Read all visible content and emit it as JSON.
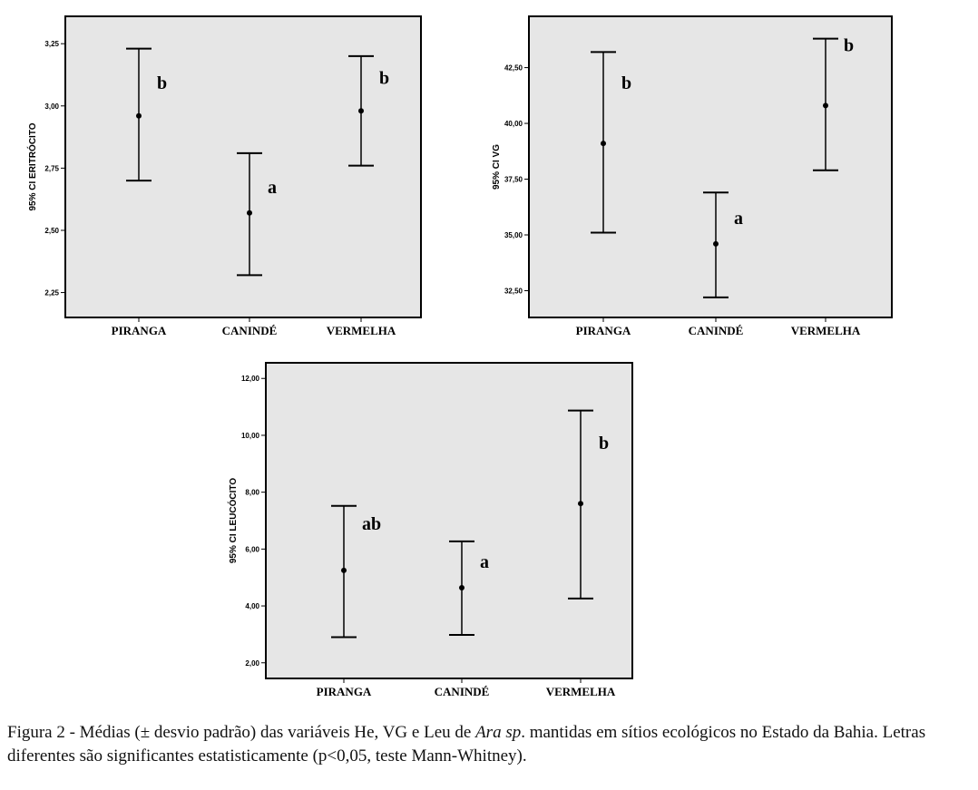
{
  "chart_data": [
    {
      "type": "errorbar",
      "ylabel": "95% CI ERITRÓCITO",
      "categories": [
        "PIRANGA",
        "CANINDÉ",
        "VERMELHA"
      ],
      "mean": [
        2.96,
        2.57,
        2.98
      ],
      "lower": [
        2.7,
        2.32,
        2.76
      ],
      "upper": [
        3.23,
        2.81,
        3.2
      ],
      "letters": [
        "b",
        "a",
        "b"
      ],
      "ylim": [
        2.15,
        3.36
      ],
      "yticks": [
        2.25,
        2.5,
        2.75,
        3.0,
        3.25
      ],
      "ytick_labels": [
        "2,25",
        "2,50",
        "2,75",
        "3,00",
        "3,25"
      ],
      "background": "#e6e6e6",
      "grid": false
    },
    {
      "type": "errorbar",
      "ylabel": "95% CI VG",
      "categories": [
        "PIRANGA",
        "CANINDÉ",
        "VERMELHA"
      ],
      "mean": [
        39.1,
        34.6,
        40.8
      ],
      "lower": [
        35.1,
        32.2,
        37.9
      ],
      "upper": [
        43.2,
        36.9,
        43.8
      ],
      "letters": [
        "b",
        "a",
        "b"
      ],
      "ylim": [
        31.3,
        44.8
      ],
      "yticks": [
        32.5,
        35.0,
        37.5,
        40.0,
        42.5
      ],
      "ytick_labels": [
        "32,50",
        "35,00",
        "37,50",
        "40,00",
        "42,50"
      ],
      "background": "#e6e6e6",
      "grid": false
    },
    {
      "type": "errorbar",
      "ylabel": "95% CI LEUCÓCITO",
      "categories": [
        "PIRANGA",
        "CANINDÉ",
        "VERMELHA"
      ],
      "mean": [
        5.25,
        4.64,
        7.6
      ],
      "lower": [
        2.9,
        2.98,
        4.26
      ],
      "upper": [
        7.52,
        6.27,
        10.87
      ],
      "letters": [
        "ab",
        "a",
        "b"
      ],
      "ylim": [
        1.45,
        12.55
      ],
      "yticks": [
        2,
        4,
        6,
        8,
        10,
        12
      ],
      "ytick_labels": [
        "2,00",
        "4,00",
        "6,00",
        "8,00",
        "10,00",
        "12,00"
      ],
      "background": "#e6e6e6",
      "grid": false
    }
  ],
  "caption": {
    "part1": "Figura 2 - Médias (± desvio padrão) das variáveis He, VG e Leu de ",
    "italic": "Ara sp",
    "part2": ". mantidas em sítios ecológicos no Estado da Bahia. Letras diferentes são significantes estatisticamente (p<0,05, teste Mann-Whitney)."
  }
}
